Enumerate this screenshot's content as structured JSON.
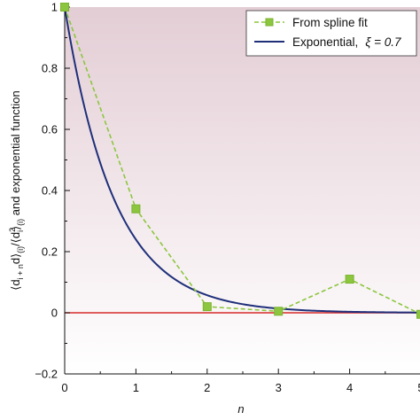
{
  "chart_data": {
    "type": "line",
    "xlabel": "n",
    "ylabel": "⟨d_{i+n} d_i⟩_(i) / ⟨d_i²⟩_(i) and exponential function",
    "ylabel_parts": {
      "open": "⟨d",
      "sub1": "i + n",
      "d": "d",
      "close1": "⟩",
      "sub2": "(i)",
      "slash": "/⟨d",
      "sub3": "i",
      "sup3": "2",
      "close2": "⟩",
      "sub4": "(i)",
      "tail": " and exponential function"
    },
    "xlim": [
      0,
      5
    ],
    "ylim": [
      -0.2,
      1
    ],
    "xticks": [
      "0",
      "1",
      "2",
      "3",
      "4",
      "5"
    ],
    "yticks": [
      "−0.2",
      "0",
      "0.2",
      "0.4",
      "0.6",
      "0.8",
      "1"
    ],
    "series": [
      {
        "name": "From spline fit",
        "style": "dashed-with-square-markers",
        "color": "#8CC63F",
        "x": [
          0,
          1,
          2,
          3,
          4,
          5
        ],
        "y": [
          1.0,
          0.34,
          0.02,
          0.005,
          0.11,
          -0.005
        ]
      },
      {
        "name": "Exponential,",
        "legend_suffix": "ξ = 0.7",
        "style": "solid",
        "color": "#1F2F7A",
        "function": "exp(-n/0.7)",
        "xi": 0.7
      }
    ],
    "reference_line": {
      "y": 0,
      "color": "#D62A2A"
    },
    "background": {
      "gradient_top": "#E3CDD5",
      "gradient_bottom": "#FFFFFF"
    },
    "grid": false,
    "legend_position": "top-right"
  }
}
